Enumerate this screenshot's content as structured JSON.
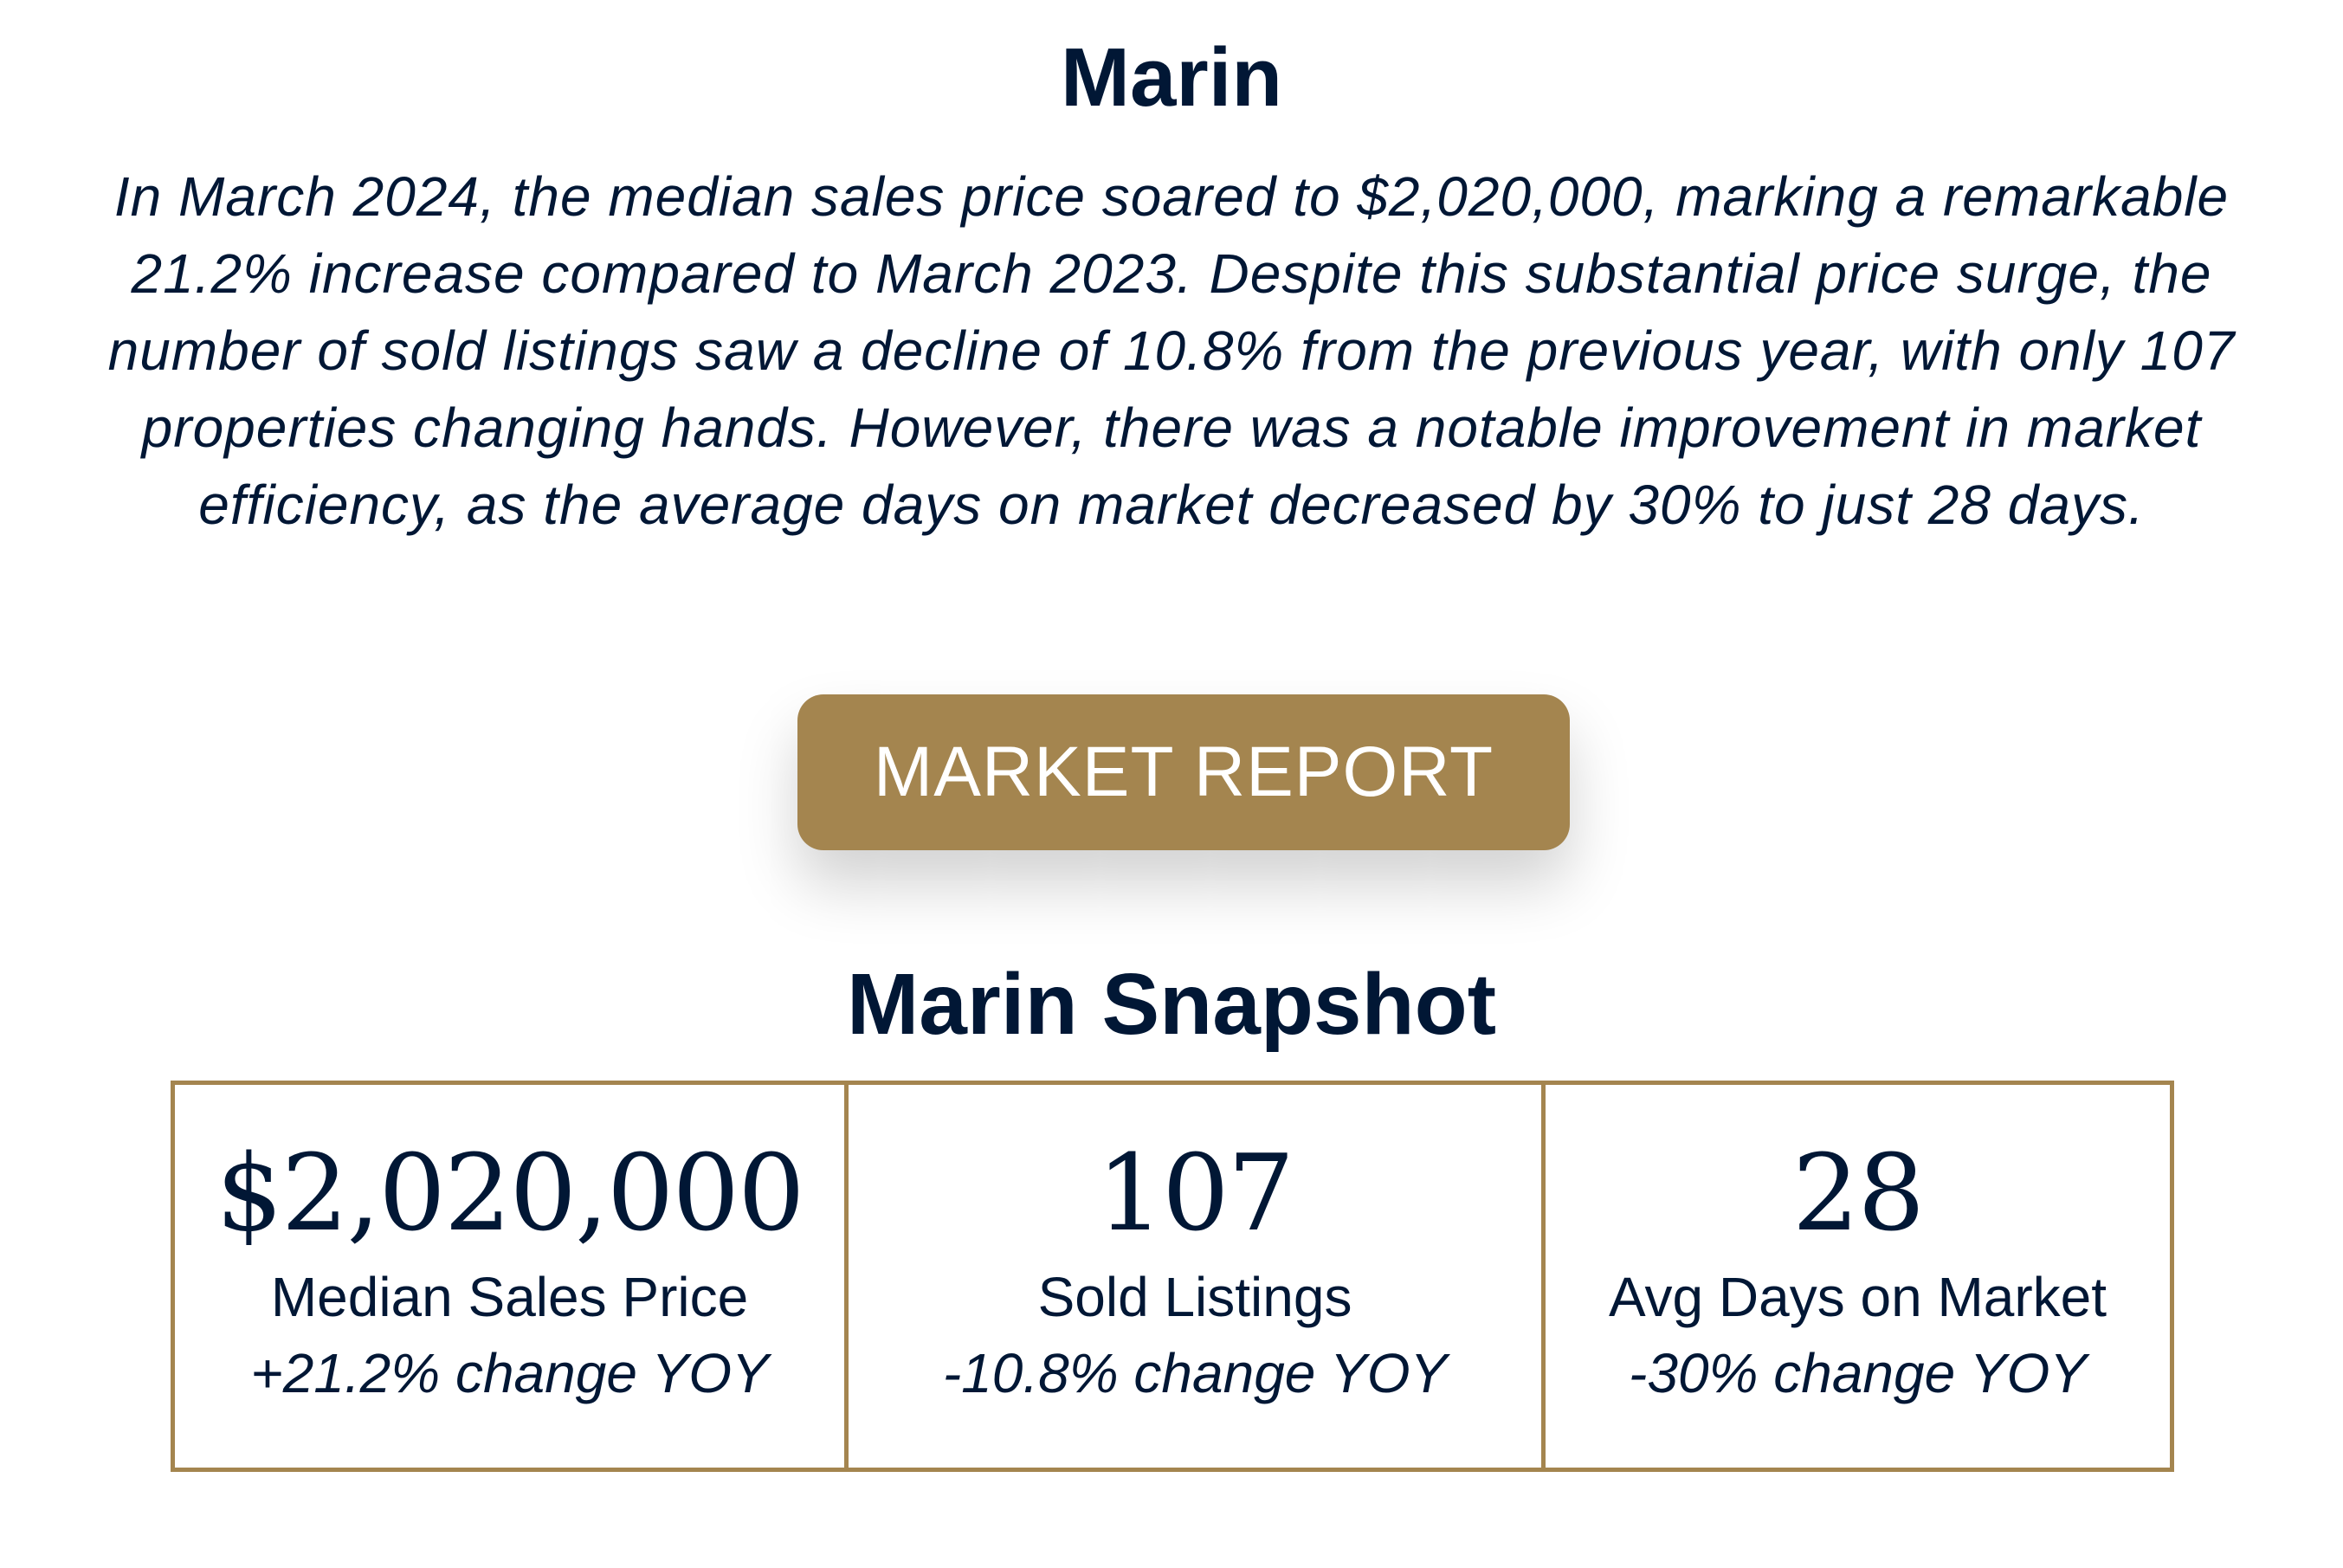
{
  "title": "Marin",
  "summary": "In March 2024, the median sales price soared to $2,020,000, marking a remarkable 21.2% increase compared to March 2023. Despite this substantial price surge, the number of sold listings saw a decline of 10.8% from the previous year, with only 107 properties changing hands. However, there was a notable improvement in market efficiency, as the average days on market decreased by 30% to just 28 days.",
  "button_label": "MARKET REPORT",
  "snapshot_title": "Marin Snapshot",
  "stats": [
    {
      "value": "$2,020,000",
      "label": "Median Sales Price",
      "change": "+21.2% change YOY"
    },
    {
      "value": "107",
      "label": "Sold Listings",
      "change": "-10.8% change YOY"
    },
    {
      "value": "28",
      "label": "Avg Days on Market",
      "change": "-30% change YOY"
    }
  ],
  "colors": {
    "navy": "#011735",
    "gold": "#a4854f"
  }
}
